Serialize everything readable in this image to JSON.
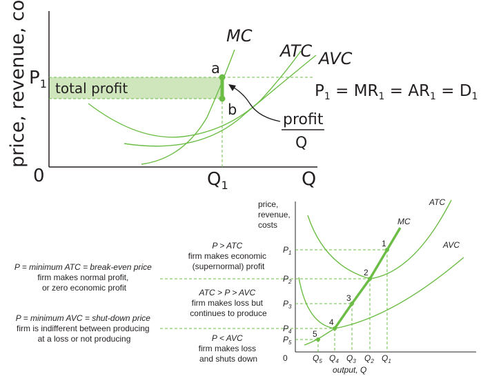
{
  "top_diagram": {
    "y_axis_label": "price, revenue, costs",
    "origin": "0",
    "x_axis_label": "Q",
    "price_label": {
      "base": "P",
      "sub": "1"
    },
    "quantity_label": {
      "base": "Q",
      "sub": "1"
    },
    "curves": {
      "mc": "MC",
      "atc": "ATC",
      "avc": "AVC"
    },
    "point_a": "a",
    "point_b": "b",
    "area_label": "total profit",
    "equation": {
      "parts": [
        {
          "base": "P",
          "sub": "1"
        },
        {
          "base": " = MR",
          "sub": "1"
        },
        {
          "base": " = AR",
          "sub": "1"
        },
        {
          "base": " = D",
          "sub": "1"
        }
      ]
    },
    "annotation": {
      "numerator": "profit",
      "denominator": "Q"
    }
  },
  "bottom_diagram": {
    "y_axis_label_lines": [
      "price,",
      "revenue,",
      "costs"
    ],
    "origin": "0",
    "x_axis_label": "output, Q",
    "curves": {
      "mc": "MC",
      "atc": "ATC",
      "avc": "AVC"
    },
    "price_ticks": [
      {
        "base": "P",
        "sub": "1"
      },
      {
        "base": "P",
        "sub": "2"
      },
      {
        "base": "P",
        "sub": "3"
      },
      {
        "base": "P",
        "sub": "4"
      },
      {
        "base": "P",
        "sub": "5"
      }
    ],
    "quantity_ticks": [
      {
        "base": "Q",
        "sub": "5"
      },
      {
        "base": "Q",
        "sub": "4"
      },
      {
        "base": "Q",
        "sub": "3"
      },
      {
        "base": "Q",
        "sub": "2"
      },
      {
        "base": "Q",
        "sub": "1"
      }
    ],
    "points": [
      "1",
      "2",
      "3",
      "4",
      "5"
    ],
    "notes": {
      "above_atc": [
        "P > ATC",
        "firm makes economic",
        "(supernormal) profit"
      ],
      "between": [
        "ATC > P > AVC",
        "firm makes loss but",
        "continues to produce"
      ],
      "below_avc": [
        "P < AVC",
        "firm makes loss",
        "and shuts down"
      ],
      "break_even": [
        "P = minimum ATC = break-even price",
        "firm makes normal profit,",
        "or zero economic profit"
      ],
      "shut_down": [
        "P = minimum AVC = shut-down price",
        "firm is indifferent between producing",
        "at a loss or not producing"
      ]
    }
  },
  "colors": {
    "curve": "#6bbd45",
    "profit_fill": "#cfe6bd",
    "text": "#231f20"
  }
}
